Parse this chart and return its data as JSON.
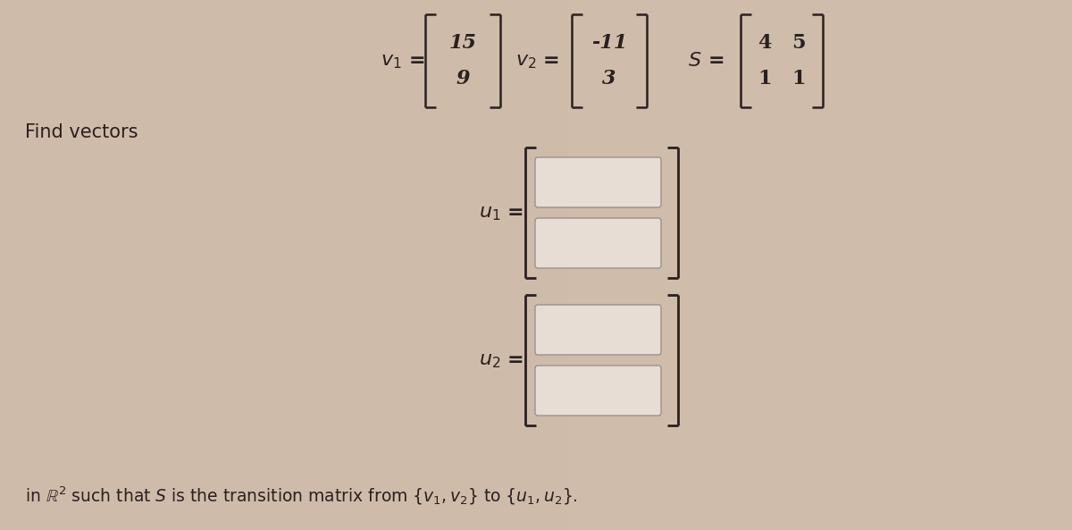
{
  "bg_color": "#c9b5a3",
  "text_color": "#2a2020",
  "find_vectors_text": "Find vectors",
  "bottom_text": "in $\\mathbb{R}^2$ such that $S$ is the transition matrix from $\\{v_1, v_2\\}$ to $\\{u_1, u_2\\}$.",
  "box_fill": "#e8ddd4",
  "box_border": "#9a9090",
  "fig_width": 12.0,
  "fig_height": 5.93,
  "v1": [
    "15",
    "9"
  ],
  "v2": [
    "-11",
    "3"
  ],
  "S": [
    [
      "4",
      "5"
    ],
    [
      "1",
      "1"
    ]
  ]
}
